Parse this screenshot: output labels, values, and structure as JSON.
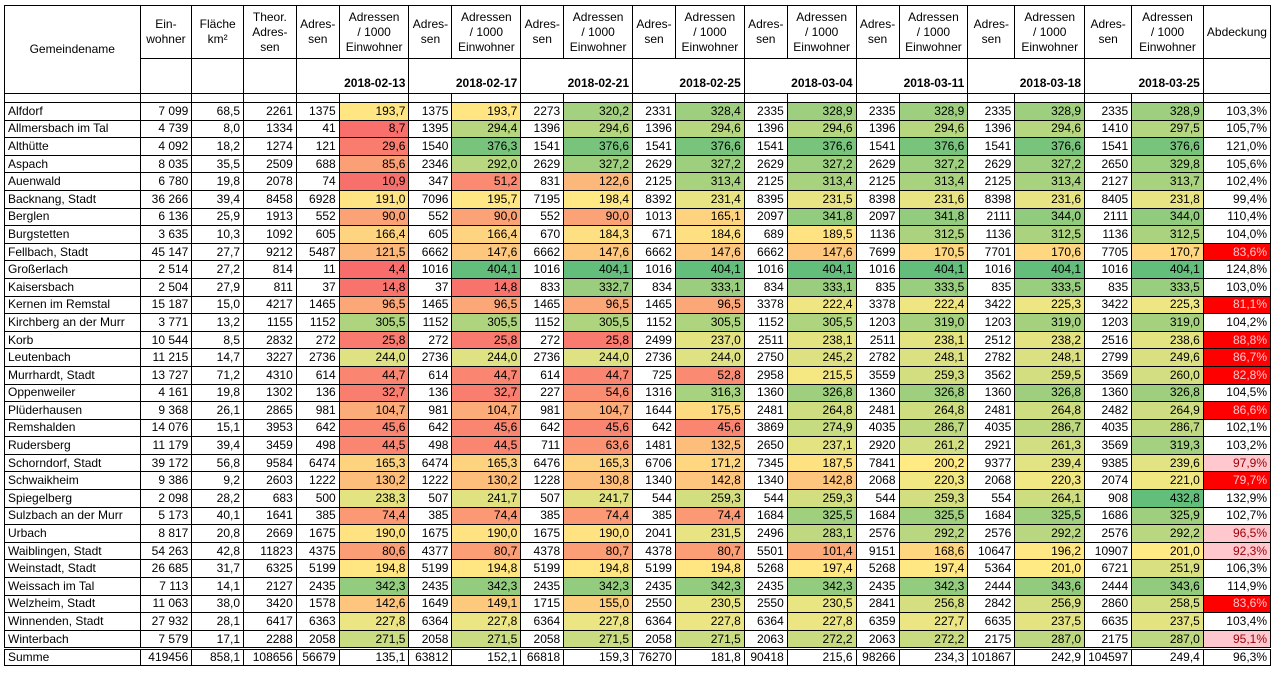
{
  "header": {
    "columns": [
      "Gemeindename",
      "Ein-\nwohner",
      "Fläche\nkm²",
      "Theor.\nAdres-\nsen",
      "Adres-\nsen",
      "Adressen\n/ 1000\nEinwohner",
      "Abdeckung"
    ],
    "dates": [
      "2018-02-13",
      "2018-02-17",
      "2018-02-21",
      "2018-02-25",
      "2018-03-04",
      "2018-03-11",
      "2018-03-18",
      "2018-03-25"
    ]
  },
  "rows": [
    [
      "Alfdorf",
      "7 099",
      "68,5",
      "2261",
      "1375",
      "193,7",
      "1375",
      "193,7",
      "2273",
      "320,2",
      "2331",
      "328,4",
      "2335",
      "328,9",
      "2335",
      "328,9",
      "2335",
      "328,9",
      "2335",
      "328,9",
      "103,3%"
    ],
    [
      "Allmersbach im Tal",
      "4 739",
      "8,0",
      "1334",
      "41",
      "8,7",
      "1395",
      "294,4",
      "1396",
      "294,6",
      "1396",
      "294,6",
      "1396",
      "294,6",
      "1396",
      "294,6",
      "1396",
      "294,6",
      "1410",
      "297,5",
      "105,7%"
    ],
    [
      "Althütte",
      "4 092",
      "18,2",
      "1274",
      "121",
      "29,6",
      "1540",
      "376,3",
      "1541",
      "376,6",
      "1541",
      "376,6",
      "1541",
      "376,6",
      "1541",
      "376,6",
      "1541",
      "376,6",
      "1541",
      "376,6",
      "121,0%"
    ],
    [
      "Aspach",
      "8 035",
      "35,5",
      "2509",
      "688",
      "85,6",
      "2346",
      "292,0",
      "2629",
      "327,2",
      "2629",
      "327,2",
      "2629",
      "327,2",
      "2629",
      "327,2",
      "2629",
      "327,2",
      "2650",
      "329,8",
      "105,6%"
    ],
    [
      "Auenwald",
      "6 780",
      "19,8",
      "2078",
      "74",
      "10,9",
      "347",
      "51,2",
      "831",
      "122,6",
      "2125",
      "313,4",
      "2125",
      "313,4",
      "2125",
      "313,4",
      "2125",
      "313,4",
      "2127",
      "313,7",
      "102,4%"
    ],
    [
      "Backnang, Stadt",
      "36 266",
      "39,4",
      "8458",
      "6928",
      "191,0",
      "7096",
      "195,7",
      "7195",
      "198,4",
      "8392",
      "231,4",
      "8395",
      "231,5",
      "8398",
      "231,6",
      "8398",
      "231,6",
      "8405",
      "231,8",
      "99,4%"
    ],
    [
      "Berglen",
      "6 136",
      "25,9",
      "1913",
      "552",
      "90,0",
      "552",
      "90,0",
      "552",
      "90,0",
      "1013",
      "165,1",
      "2097",
      "341,8",
      "2097",
      "341,8",
      "2111",
      "344,0",
      "2111",
      "344,0",
      "110,4%"
    ],
    [
      "Burgstetten",
      "3 635",
      "10,3",
      "1092",
      "605",
      "166,4",
      "605",
      "166,4",
      "670",
      "184,3",
      "671",
      "184,6",
      "689",
      "189,5",
      "1136",
      "312,5",
      "1136",
      "312,5",
      "1136",
      "312,5",
      "104,0%"
    ],
    [
      "Fellbach, Stadt",
      "45 147",
      "27,7",
      "9212",
      "5487",
      "121,5",
      "6662",
      "147,6",
      "6662",
      "147,6",
      "6662",
      "147,6",
      "6662",
      "147,6",
      "7699",
      "170,5",
      "7701",
      "170,6",
      "7705",
      "170,7",
      "83,6%"
    ],
    [
      "Großerlach",
      "2 514",
      "27,2",
      "814",
      "11",
      "4,4",
      "1016",
      "404,1",
      "1016",
      "404,1",
      "1016",
      "404,1",
      "1016",
      "404,1",
      "1016",
      "404,1",
      "1016",
      "404,1",
      "1016",
      "404,1",
      "124,8%"
    ],
    [
      "Kaisersbach",
      "2 504",
      "27,9",
      "811",
      "37",
      "14,8",
      "37",
      "14,8",
      "833",
      "332,7",
      "834",
      "333,1",
      "834",
      "333,1",
      "835",
      "333,5",
      "835",
      "333,5",
      "835",
      "333,5",
      "103,0%"
    ],
    [
      "Kernen im Remstal",
      "15 187",
      "15,0",
      "4217",
      "1465",
      "96,5",
      "1465",
      "96,5",
      "1465",
      "96,5",
      "1465",
      "96,5",
      "3378",
      "222,4",
      "3378",
      "222,4",
      "3422",
      "225,3",
      "3422",
      "225,3",
      "81,1%"
    ],
    [
      "Kirchberg an der Murr",
      "3 771",
      "13,2",
      "1155",
      "1152",
      "305,5",
      "1152",
      "305,5",
      "1152",
      "305,5",
      "1152",
      "305,5",
      "1152",
      "305,5",
      "1203",
      "319,0",
      "1203",
      "319,0",
      "1203",
      "319,0",
      "104,2%"
    ],
    [
      "Korb",
      "10 544",
      "8,5",
      "2832",
      "272",
      "25,8",
      "272",
      "25,8",
      "272",
      "25,8",
      "2499",
      "237,0",
      "2511",
      "238,1",
      "2511",
      "238,1",
      "2512",
      "238,2",
      "2516",
      "238,6",
      "88,8%"
    ],
    [
      "Leutenbach",
      "11 215",
      "14,7",
      "3227",
      "2736",
      "244,0",
      "2736",
      "244,0",
      "2736",
      "244,0",
      "2736",
      "244,0",
      "2750",
      "245,2",
      "2782",
      "248,1",
      "2782",
      "248,1",
      "2799",
      "249,6",
      "86,7%"
    ],
    [
      "Murrhardt, Stadt",
      "13 727",
      "71,2",
      "4310",
      "614",
      "44,7",
      "614",
      "44,7",
      "614",
      "44,7",
      "725",
      "52,8",
      "2958",
      "215,5",
      "3559",
      "259,3",
      "3562",
      "259,5",
      "3569",
      "260,0",
      "82,8%"
    ],
    [
      "Oppenweiler",
      "4 161",
      "19,8",
      "1302",
      "136",
      "32,7",
      "136",
      "32,7",
      "227",
      "54,6",
      "1316",
      "316,3",
      "1360",
      "326,8",
      "1360",
      "326,8",
      "1360",
      "326,8",
      "1360",
      "326,8",
      "104,5%"
    ],
    [
      "Plüderhausen",
      "9 368",
      "26,1",
      "2865",
      "981",
      "104,7",
      "981",
      "104,7",
      "981",
      "104,7",
      "1644",
      "175,5",
      "2481",
      "264,8",
      "2481",
      "264,8",
      "2481",
      "264,8",
      "2482",
      "264,9",
      "86,6%"
    ],
    [
      "Remshalden",
      "14 076",
      "15,1",
      "3953",
      "642",
      "45,6",
      "642",
      "45,6",
      "642",
      "45,6",
      "642",
      "45,6",
      "3869",
      "274,9",
      "4035",
      "286,7",
      "4035",
      "286,7",
      "4035",
      "286,7",
      "102,1%"
    ],
    [
      "Rudersberg",
      "11 179",
      "39,4",
      "3459",
      "498",
      "44,5",
      "498",
      "44,5",
      "711",
      "63,6",
      "1481",
      "132,5",
      "2650",
      "237,1",
      "2920",
      "261,2",
      "2921",
      "261,3",
      "3569",
      "319,3",
      "103,2%"
    ],
    [
      "Schorndorf, Stadt",
      "39 172",
      "56,8",
      "9584",
      "6474",
      "165,3",
      "6474",
      "165,3",
      "6476",
      "165,3",
      "6706",
      "171,2",
      "7345",
      "187,5",
      "7841",
      "200,2",
      "9377",
      "239,4",
      "9385",
      "239,6",
      "97,9%"
    ],
    [
      "Schwaikheim",
      "9 386",
      "9,2",
      "2603",
      "1222",
      "130,2",
      "1222",
      "130,2",
      "1228",
      "130,8",
      "1340",
      "142,8",
      "1340",
      "142,8",
      "2068",
      "220,3",
      "2068",
      "220,3",
      "2074",
      "221,0",
      "79,7%"
    ],
    [
      "Spiegelberg",
      "2 098",
      "28,2",
      "683",
      "500",
      "238,3",
      "507",
      "241,7",
      "507",
      "241,7",
      "544",
      "259,3",
      "544",
      "259,3",
      "544",
      "259,3",
      "554",
      "264,1",
      "908",
      "432,8",
      "132,9%"
    ],
    [
      "Sulzbach an der Murr",
      "5 173",
      "40,1",
      "1641",
      "385",
      "74,4",
      "385",
      "74,4",
      "385",
      "74,4",
      "385",
      "74,4",
      "1684",
      "325,5",
      "1684",
      "325,5",
      "1684",
      "325,5",
      "1686",
      "325,9",
      "102,7%"
    ],
    [
      "Urbach",
      "8 817",
      "20,8",
      "2669",
      "1675",
      "190,0",
      "1675",
      "190,0",
      "1675",
      "190,0",
      "2041",
      "231,5",
      "2496",
      "283,1",
      "2576",
      "292,2",
      "2576",
      "292,2",
      "2576",
      "292,2",
      "96,5%"
    ],
    [
      "Waiblingen, Stadt",
      "54 263",
      "42,8",
      "11823",
      "4375",
      "80,6",
      "4377",
      "80,7",
      "4378",
      "80,7",
      "4378",
      "80,7",
      "5501",
      "101,4",
      "9151",
      "168,6",
      "10647",
      "196,2",
      "10907",
      "201,0",
      "92,3%"
    ],
    [
      "Weinstadt, Stadt",
      "26 685",
      "31,7",
      "6325",
      "5199",
      "194,8",
      "5199",
      "194,8",
      "5199",
      "194,8",
      "5199",
      "194,8",
      "5268",
      "197,4",
      "5268",
      "197,4",
      "5364",
      "201,0",
      "6721",
      "251,9",
      "106,3%"
    ],
    [
      "Weissach im Tal",
      "7 113",
      "14,1",
      "2127",
      "2435",
      "342,3",
      "2435",
      "342,3",
      "2435",
      "342,3",
      "2435",
      "342,3",
      "2435",
      "342,3",
      "2435",
      "342,3",
      "2444",
      "343,6",
      "2444",
      "343,6",
      "114,9%"
    ],
    [
      "Welzheim, Stadt",
      "11 063",
      "38,0",
      "3420",
      "1578",
      "142,6",
      "1649",
      "149,1",
      "1715",
      "155,0",
      "2550",
      "230,5",
      "2550",
      "230,5",
      "2841",
      "256,8",
      "2842",
      "256,9",
      "2860",
      "258,5",
      "83,6%"
    ],
    [
      "Winnenden, Stadt",
      "27 932",
      "28,1",
      "6417",
      "6363",
      "227,8",
      "6364",
      "227,8",
      "6364",
      "227,8",
      "6364",
      "227,8",
      "6364",
      "227,8",
      "6359",
      "227,7",
      "6635",
      "237,5",
      "6635",
      "237,5",
      "103,4%"
    ],
    [
      "Winterbach",
      "7 579",
      "17,1",
      "2288",
      "2058",
      "271,5",
      "2058",
      "271,5",
      "2058",
      "271,5",
      "2058",
      "271,5",
      "2063",
      "272,2",
      "2063",
      "272,2",
      "2175",
      "287,0",
      "2175",
      "287,0",
      "95,1%"
    ]
  ],
  "total": [
    "Summe",
    "419456",
    "858,1",
    "108656",
    "56679",
    "135,1",
    "63812",
    "152,1",
    "66818",
    "159,3",
    "76270",
    "181,8",
    "90418",
    "215,6",
    "98266",
    "234,3",
    "101867",
    "242,9",
    "104597",
    "249,4",
    "96,3%"
  ]
}
